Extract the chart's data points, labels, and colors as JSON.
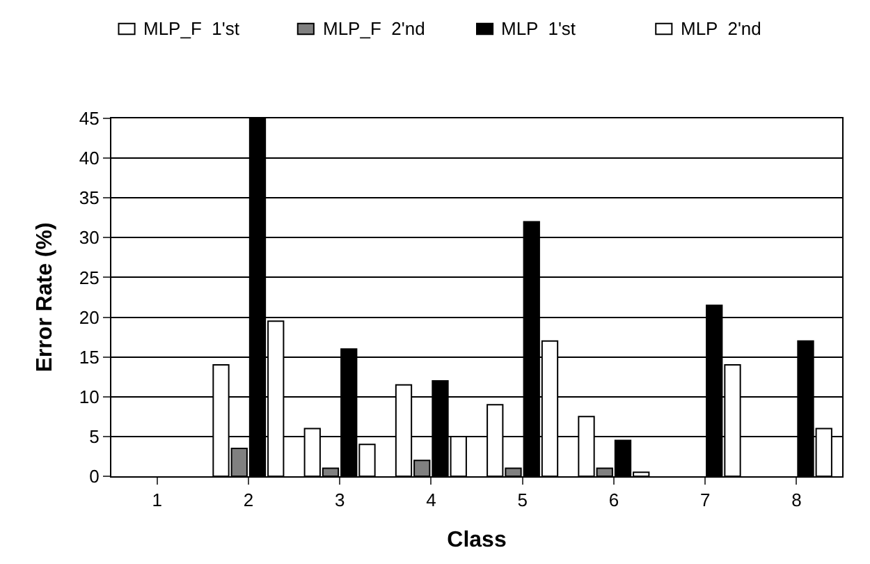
{
  "chart_data": {
    "type": "bar",
    "xlabel": "Class",
    "ylabel": "Error Rate (%)",
    "categories": [
      "1",
      "2",
      "3",
      "4",
      "5",
      "6",
      "7",
      "8"
    ],
    "series": [
      {
        "name": "MLP_F  1'st",
        "color": "#ffffff",
        "values": [
          0,
          14,
          6,
          11.5,
          9,
          7.5,
          0,
          0
        ]
      },
      {
        "name": "MLP_F  2'nd",
        "color": "#808080",
        "values": [
          0,
          3.5,
          1,
          2,
          1,
          1,
          0,
          0
        ]
      },
      {
        "name": "MLP  1'st",
        "color": "#000000",
        "values": [
          0,
          45,
          16,
          12,
          32,
          4.5,
          21.5,
          17
        ]
      },
      {
        "name": "MLP  2'nd",
        "color": "#ffffff",
        "values": [
          0,
          19.5,
          4,
          5,
          17,
          0.5,
          14,
          6
        ]
      }
    ],
    "ylim": [
      0,
      45
    ],
    "yticks": [
      0,
      5,
      10,
      15,
      20,
      25,
      30,
      35,
      40,
      45
    ],
    "grid": "y",
    "legend": "top"
  }
}
